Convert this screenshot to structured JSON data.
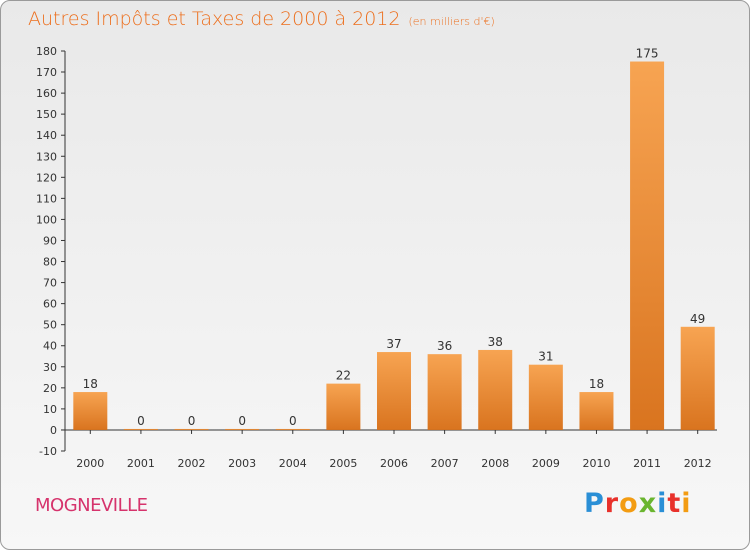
{
  "title": "Autres Impôts et Taxes de 2000 à 2012",
  "title_unit": "(en milliers d'€)",
  "town": "MOGNEVILLE",
  "logo": [
    "P",
    "r",
    "o",
    "x",
    "i",
    "t",
    "i"
  ],
  "colors": {
    "bar_light": "#f7a452",
    "bar_dark": "#d9741f",
    "title": "#ed6f1d",
    "town": "#d6336c"
  },
  "chart_data": {
    "type": "bar",
    "categories": [
      "2000",
      "2001",
      "2002",
      "2003",
      "2004",
      "2005",
      "2006",
      "2007",
      "2008",
      "2009",
      "2010",
      "2011",
      "2012"
    ],
    "values": [
      18,
      0,
      0,
      0,
      0,
      22,
      37,
      36,
      38,
      31,
      18,
      175,
      49
    ],
    "ylim": [
      -10,
      180
    ],
    "yticks": [
      -10,
      0,
      10,
      20,
      30,
      40,
      50,
      60,
      70,
      80,
      90,
      100,
      110,
      120,
      130,
      140,
      150,
      160,
      170,
      180
    ],
    "grid": false
  }
}
